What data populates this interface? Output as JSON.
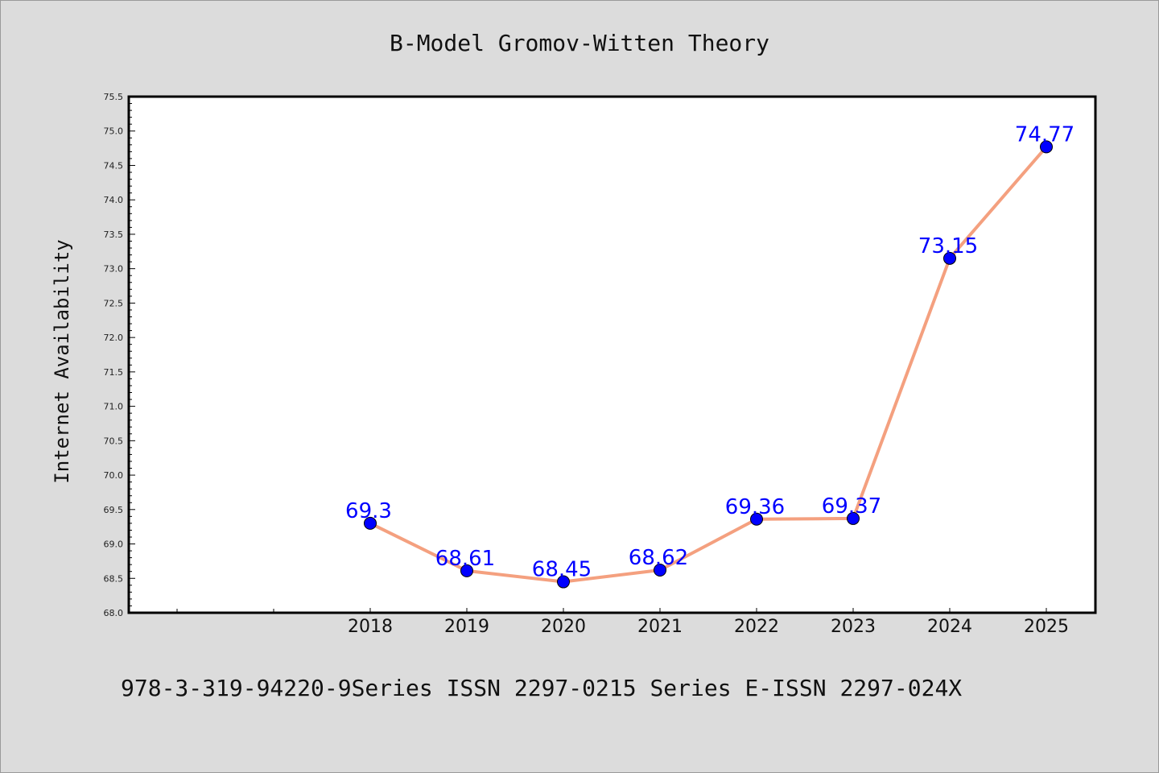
{
  "chart_data": {
    "type": "line",
    "title": "B-Model Gromov-Witten Theory",
    "xlabel": "",
    "ylabel": "Internet Availability",
    "categories": [
      "2018",
      "2019",
      "2020",
      "2021",
      "2022",
      "2023",
      "2024",
      "2025"
    ],
    "series": [
      {
        "values": [
          69.3,
          68.61,
          68.45,
          68.62,
          69.36,
          69.37,
          73.15,
          74.77
        ]
      }
    ],
    "data_labels": [
      "69.3",
      "68.61",
      "68.45",
      "68.62",
      "69.36",
      "69.37",
      "73.15",
      "74.77"
    ],
    "ylim": [
      68.0,
      75.5
    ],
    "yticks": [
      "68.0",
      "68.5",
      "69.0",
      "69.5",
      "70.0",
      "70.5",
      "71.0",
      "71.5",
      "72.0",
      "72.5",
      "73.0",
      "73.5",
      "74.0",
      "74.5",
      "75.0",
      "75.5"
    ],
    "grid": false,
    "colors": {
      "line": "#f4a07f",
      "marker": "#0000ff",
      "label": "#0000ff",
      "background": "#dcdcdc",
      "plot_background": "#ffffff"
    }
  },
  "footer": "978-3-319-94220-9Series ISSN 2297-0215 Series E-ISSN 2297-024X"
}
